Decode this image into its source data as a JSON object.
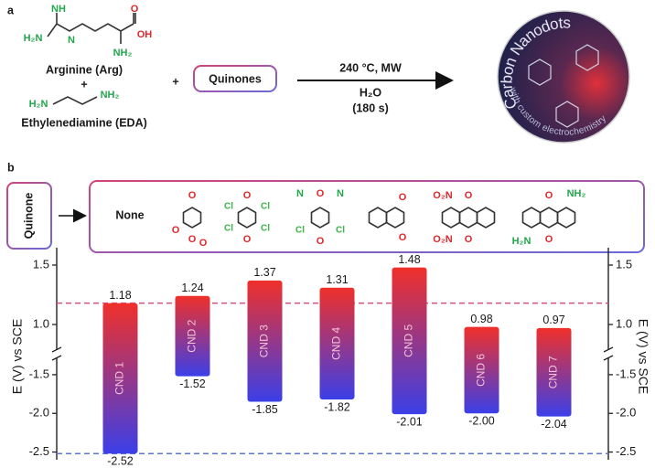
{
  "panel_a": {
    "label": "a",
    "arginine_atoms": [
      "NH",
      "H₂N",
      "N",
      "O",
      "OH",
      "NH₂"
    ],
    "arginine": "Arginine (Arg)",
    "plus": [
      "+",
      "+"
    ],
    "eda_atoms": [
      "H₂N",
      "NH₂"
    ],
    "eda": "Ethylenediamine (EDA)",
    "quinones": "Quinones",
    "conditions": [
      "240 °C, MW",
      "H₂O",
      "(180 s)"
    ],
    "nanodot_title": "Carbon Nanodots",
    "nanodot_subtitle": "with custom electrochemistry"
  },
  "panel_b": {
    "label": "b",
    "quinone": "Quinone",
    "none": "None",
    "molecules": [
      {
        "atoms": [
          "O",
          "O",
          "O",
          "O"
        ]
      },
      {
        "atoms": [
          "O",
          "O",
          "Cl",
          "Cl",
          "Cl",
          "Cl"
        ]
      },
      {
        "atoms": [
          "O",
          "O",
          "N",
          "N",
          "Cl",
          "Cl"
        ]
      },
      {
        "atoms": [
          "O",
          "O"
        ]
      },
      {
        "atoms": [
          "O",
          "O",
          "O₂N",
          "O₂N"
        ]
      },
      {
        "atoms": [
          "O",
          "O",
          "NH₂",
          "H₂N"
        ]
      }
    ]
  },
  "chart_data": {
    "type": "floating-bar",
    "ylabel": "E (V) vs SCE",
    "categories": [
      "CND 1",
      "CND 2",
      "CND 3",
      "CND 4",
      "CND 5",
      "CND 6",
      "CND 7"
    ],
    "series": [
      {
        "values": [
          1.18,
          1.24,
          1.37,
          1.31,
          1.48,
          0.98,
          0.97
        ]
      },
      {
        "values": [
          -2.52,
          -1.52,
          -1.85,
          -1.82,
          -2.01,
          -2.0,
          -2.04
        ],
        "value_labels": [
          "-2.52",
          "-1.52",
          "-1.85",
          "-1.82",
          "-2.01",
          "-2.00",
          "-2.04"
        ]
      }
    ],
    "colors": [
      "#f0302a",
      "#3b3fe8"
    ],
    "ylim": [
      -2.6,
      1.6
    ],
    "y_break": [
      -1.3,
      0.8
    ],
    "yticks": [
      -2.5,
      {
        "value": -2.0,
        "label": "-2.0"
      },
      -1.5,
      {
        "value": 1.0,
        "label": "1.0"
      },
      1.5
    ],
    "reference_lines": [
      {
        "value": 1.18,
        "color": "#d4507a"
      },
      {
        "value": -2.52,
        "color": "#5a78d0"
      }
    ]
  }
}
